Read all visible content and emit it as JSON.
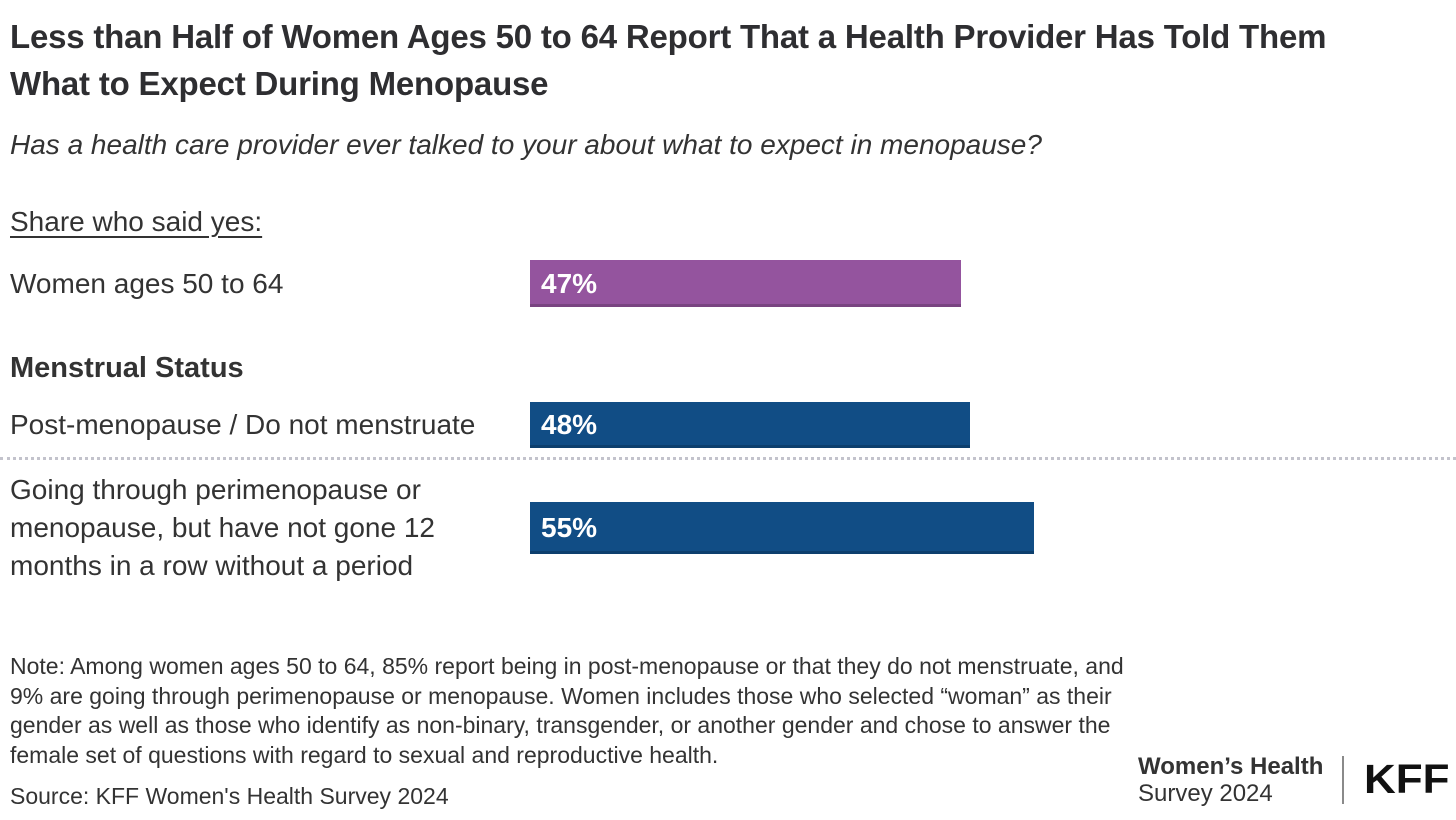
{
  "header": {
    "title": "Less than Half of Women Ages 50 to 64 Report That a Health Provider Has Told Them What to Expect During Menopause",
    "subtitle": "Has a health care provider ever talked to your about what to expect in menopause?"
  },
  "chart": {
    "section_label": "Share who said yes:",
    "group_header": "Menstrual Status"
  },
  "chart_data": {
    "type": "bar",
    "orientation": "horizontal",
    "unit": "percent",
    "xlim": [
      0,
      100
    ],
    "title": "Share who said yes:",
    "grid": false,
    "legend": false,
    "categories": [
      "Women ages 50 to 64",
      "Post-menopause / Do not menstruate",
      "Going through perimenopause or menopause, but have not gone 12 months in a row without a period"
    ],
    "values": [
      47,
      48,
      55
    ],
    "bars": [
      {
        "label": "Women ages 50 to 64",
        "group": null,
        "value": 47,
        "value_label": "47%",
        "color": "#94549e"
      },
      {
        "label": "Post-menopause / Do not menstruate",
        "group": "Menstrual Status",
        "value": 48,
        "value_label": "48%",
        "color": "#114d85"
      },
      {
        "label": "Going through perimenopause or menopause, but have not gone 12 months in a row without a period",
        "group": "Menstrual Status",
        "value": 55,
        "value_label": "55%",
        "color": "#114d85"
      }
    ],
    "colors": {
      "highlight_purple": "#94549e",
      "primary_blue": "#114d85"
    }
  },
  "footer": {
    "note": "Note: Among women ages 50 to 64, 85% report being in post-menopause or that they do not menstruate, and 9% are going through perimenopause or menopause. Women includes those who selected “woman” as their gender as well as those who identify as non-binary, transgender, or another gender and chose to answer the female set of questions with regard to sexual and reproductive health.",
    "source": "Source: KFF Women's Health Survey 2024",
    "branding_line1": "Women’s Health",
    "branding_line2": "Survey 2024",
    "logo": "KFF"
  }
}
